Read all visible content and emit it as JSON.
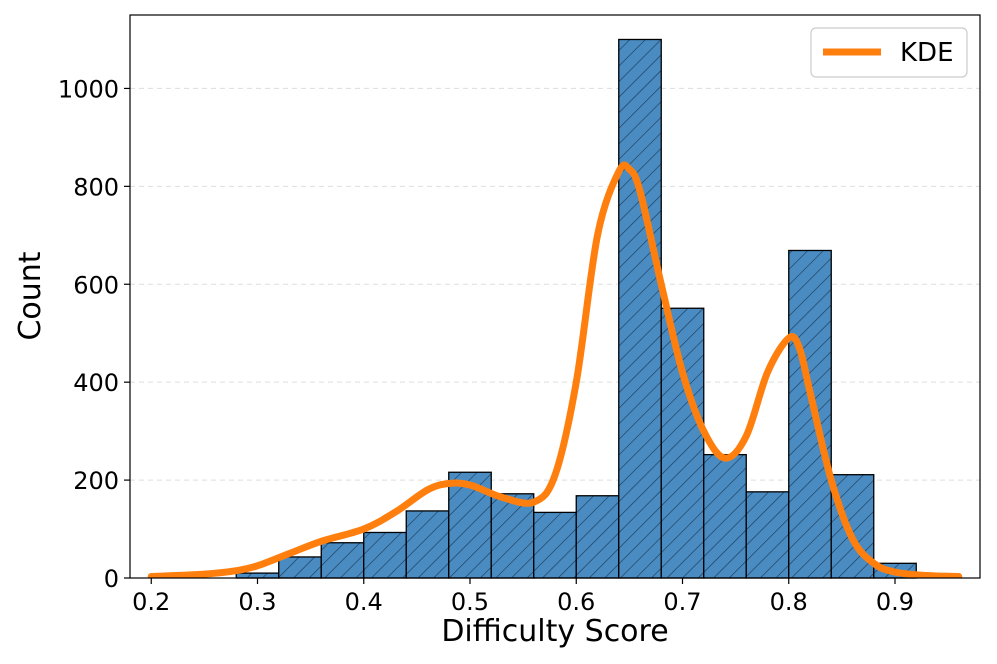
{
  "chart_data": {
    "type": "bar",
    "xlabel": "Difficulty Score",
    "ylabel": "Count",
    "xlim": [
      0.18,
      0.98
    ],
    "ylim": [
      0,
      1150
    ],
    "xticks": [
      0.2,
      0.3,
      0.4,
      0.5,
      0.6,
      0.7,
      0.8,
      0.9
    ],
    "xtick_labels": [
      "0.2",
      "0.3",
      "0.4",
      "0.5",
      "0.6",
      "0.7",
      "0.8",
      "0.9"
    ],
    "yticks": [
      0,
      200,
      400,
      600,
      800,
      1000
    ],
    "ytick_labels": [
      "0",
      "200",
      "400",
      "600",
      "800",
      "1000"
    ],
    "grid": "horizontal dashed",
    "legend": {
      "position": "top-right",
      "entries": [
        "KDE"
      ]
    },
    "bar_color": "#4a8cc2",
    "bar_edge_color": "#000000",
    "bar_hatch": "diagonal",
    "kde_color": "#ff7f0e",
    "bins": [
      {
        "x0": 0.28,
        "x1": 0.32,
        "count": 10
      },
      {
        "x0": 0.32,
        "x1": 0.36,
        "count": 43
      },
      {
        "x0": 0.36,
        "x1": 0.4,
        "count": 72
      },
      {
        "x0": 0.4,
        "x1": 0.44,
        "count": 93
      },
      {
        "x0": 0.44,
        "x1": 0.48,
        "count": 137
      },
      {
        "x0": 0.48,
        "x1": 0.52,
        "count": 216
      },
      {
        "x0": 0.52,
        "x1": 0.56,
        "count": 172
      },
      {
        "x0": 0.56,
        "x1": 0.6,
        "count": 134
      },
      {
        "x0": 0.6,
        "x1": 0.64,
        "count": 168
      },
      {
        "x0": 0.64,
        "x1": 0.68,
        "count": 1100
      },
      {
        "x0": 0.68,
        "x1": 0.72,
        "count": 551
      },
      {
        "x0": 0.72,
        "x1": 0.76,
        "count": 252
      },
      {
        "x0": 0.76,
        "x1": 0.8,
        "count": 176
      },
      {
        "x0": 0.8,
        "x1": 0.84,
        "count": 669
      },
      {
        "x0": 0.84,
        "x1": 0.88,
        "count": 211
      },
      {
        "x0": 0.88,
        "x1": 0.92,
        "count": 30
      }
    ],
    "series": [
      {
        "name": "KDE",
        "x": [
          0.2,
          0.25,
          0.28,
          0.3,
          0.33,
          0.36,
          0.4,
          0.43,
          0.46,
          0.48,
          0.5,
          0.53,
          0.56,
          0.58,
          0.6,
          0.62,
          0.64,
          0.65,
          0.66,
          0.68,
          0.7,
          0.72,
          0.74,
          0.76,
          0.78,
          0.8,
          0.81,
          0.82,
          0.84,
          0.86,
          0.88,
          0.9,
          0.93,
          0.96
        ],
        "y": [
          3,
          8,
          15,
          25,
          50,
          75,
          100,
          135,
          180,
          193,
          190,
          165,
          155,
          210,
          400,
          700,
          830,
          835,
          790,
          600,
          420,
          300,
          245,
          290,
          420,
          490,
          470,
          380,
          200,
          80,
          30,
          12,
          5,
          3
        ]
      }
    ]
  }
}
